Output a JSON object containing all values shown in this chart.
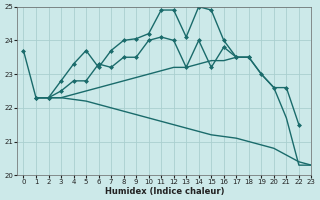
{
  "xlabel": "Humidex (Indice chaleur)",
  "xlim": [
    -0.5,
    23
  ],
  "ylim": [
    20,
    25
  ],
  "yticks": [
    20,
    21,
    22,
    23,
    24,
    25
  ],
  "xticks": [
    0,
    1,
    2,
    3,
    4,
    5,
    6,
    7,
    8,
    9,
    10,
    11,
    12,
    13,
    14,
    15,
    16,
    17,
    18,
    19,
    20,
    21,
    22,
    23
  ],
  "bg_color": "#cce9e9",
  "grid_color": "#aacfcf",
  "line_color": "#1a6b6b",
  "series": [
    {
      "x": [
        0,
        1,
        2,
        3,
        4,
        5,
        6,
        7,
        8,
        9,
        10,
        11,
        12,
        13,
        14,
        15,
        16,
        17,
        18
      ],
      "y": [
        23.7,
        22.3,
        22.3,
        22.8,
        23.3,
        23.7,
        23.2,
        23.7,
        24.0,
        24.05,
        24.2,
        24.9,
        24.9,
        24.1,
        25.0,
        24.9,
        24.0,
        23.5,
        23.5
      ],
      "marker": "D",
      "lw": 1.0
    },
    {
      "x": [
        1,
        2,
        3,
        4,
        5,
        6,
        7,
        8,
        9,
        10,
        11,
        12,
        13,
        14,
        15,
        16,
        17,
        18,
        19,
        20,
        21,
        22
      ],
      "y": [
        22.3,
        22.3,
        22.5,
        22.8,
        22.8,
        23.3,
        23.2,
        23.5,
        23.5,
        24.0,
        24.1,
        24.0,
        23.2,
        24.0,
        23.2,
        23.8,
        23.5,
        23.5,
        23.0,
        22.6,
        22.6,
        21.5
      ],
      "marker": "D",
      "lw": 1.0
    },
    {
      "x": [
        1,
        2,
        3,
        4,
        5,
        6,
        7,
        8,
        9,
        10,
        11,
        12,
        13,
        14,
        15,
        16,
        17,
        18,
        19,
        20,
        21,
        22,
        23
      ],
      "y": [
        22.3,
        22.3,
        22.3,
        22.4,
        22.5,
        22.6,
        22.7,
        22.8,
        22.9,
        23.0,
        23.1,
        23.2,
        23.2,
        23.3,
        23.4,
        23.4,
        23.5,
        23.5,
        23.0,
        22.6,
        21.7,
        20.3,
        20.3
      ],
      "marker": null,
      "lw": 1.0
    },
    {
      "x": [
        1,
        2,
        3,
        4,
        5,
        6,
        7,
        8,
        9,
        10,
        11,
        12,
        13,
        14,
        15,
        16,
        17,
        18,
        19,
        20,
        21,
        22,
        23
      ],
      "y": [
        22.3,
        22.3,
        22.3,
        22.25,
        22.2,
        22.1,
        22.0,
        21.9,
        21.8,
        21.7,
        21.6,
        21.5,
        21.4,
        21.3,
        21.2,
        21.15,
        21.1,
        21.0,
        20.9,
        20.8,
        20.6,
        20.4,
        20.3
      ],
      "marker": null,
      "lw": 1.0
    }
  ]
}
